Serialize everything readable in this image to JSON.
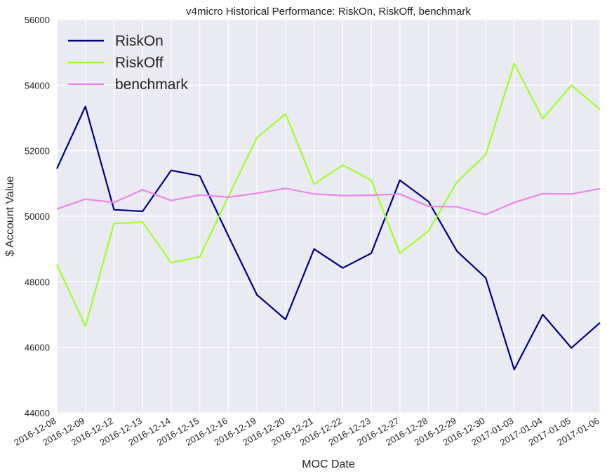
{
  "chart_data": {
    "type": "line",
    "title": "v4micro Historical Performance: RiskOn, RiskOff, benchmark",
    "xlabel": "MOC Date",
    "ylabel": "$ Account Value",
    "ylim": [
      44000,
      56000
    ],
    "yticks": [
      44000,
      46000,
      48000,
      50000,
      52000,
      54000,
      56000
    ],
    "grid": true,
    "legend_position": "top-left",
    "background": "#eaeaf2",
    "categories": [
      "2016-12-08",
      "2016-12-09",
      "2016-12-12",
      "2016-12-13",
      "2016-12-14",
      "2016-12-15",
      "2016-12-16",
      "2016-12-19",
      "2016-12-20",
      "2016-12-21",
      "2016-12-22",
      "2016-12-23",
      "2016-12-27",
      "2016-12-28",
      "2016-12-29",
      "2016-12-30",
      "2017-01-03",
      "2017-01-04",
      "2017-01-05",
      "2017-01-06"
    ],
    "series": [
      {
        "name": "RiskOn",
        "color": "#000080",
        "values": [
          51450,
          53350,
          50200,
          50150,
          51400,
          51230,
          49400,
          47600,
          46850,
          49000,
          48420,
          48870,
          51100,
          50450,
          48930,
          48120,
          45320,
          47000,
          45980,
          46750
        ]
      },
      {
        "name": "RiskOff",
        "color": "#9aff2a",
        "values": [
          48530,
          46640,
          49780,
          49820,
          48580,
          48760,
          50600,
          52400,
          53120,
          50980,
          51560,
          51100,
          48870,
          49550,
          51050,
          51880,
          54660,
          52980,
          54000,
          53260
        ]
      },
      {
        "name": "benchmark",
        "color": "#ee82ee",
        "values": [
          50220,
          50520,
          50420,
          50810,
          50480,
          50650,
          50580,
          50700,
          50850,
          50680,
          50630,
          50640,
          50680,
          50300,
          50290,
          50050,
          50420,
          50690,
          50680,
          50840
        ]
      }
    ]
  }
}
